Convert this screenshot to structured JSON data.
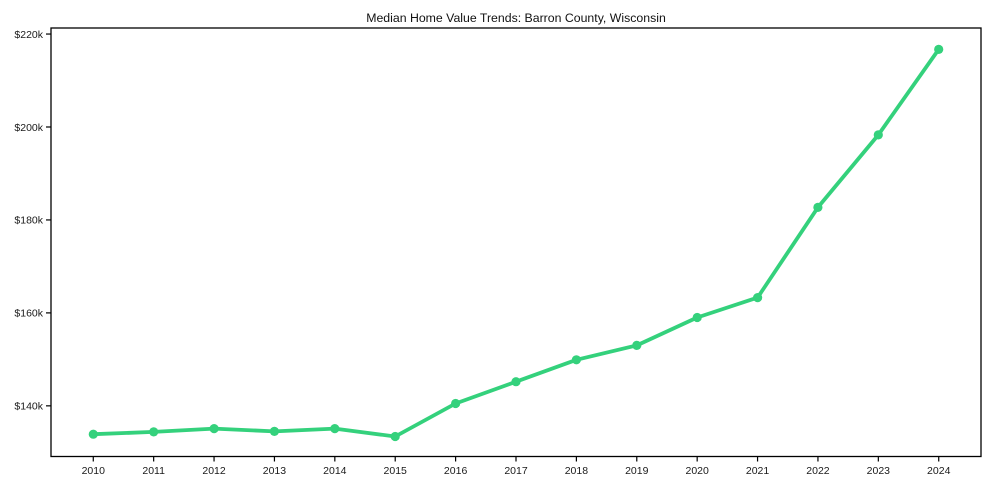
{
  "chart_data": {
    "type": "line",
    "title": "Median Home Value Trends: Barron County, Wisconsin",
    "xlabel": "",
    "ylabel": "",
    "x": [
      2010,
      2011,
      2012,
      2013,
      2014,
      2015,
      2016,
      2017,
      2018,
      2019,
      2020,
      2021,
      2022,
      2023,
      2024
    ],
    "x_labels": [
      "2010",
      "2011",
      "2012",
      "2013",
      "2014",
      "2015",
      "2016",
      "2017",
      "2018",
      "2019",
      "2020",
      "2021",
      "2022",
      "2023",
      "2024"
    ],
    "series": [
      {
        "name": "Median Home Value",
        "values": [
          133900,
          134400,
          135100,
          134500,
          135100,
          133400,
          140500,
          145200,
          149900,
          153000,
          159000,
          163300,
          182700,
          198300,
          216700
        ],
        "color": "#34d17c",
        "marker": "circle"
      }
    ],
    "y_ticks": [
      {
        "value": 140000,
        "label": "$140k"
      },
      {
        "value": 160000,
        "label": "$160k"
      },
      {
        "value": 180000,
        "label": "$180k"
      },
      {
        "value": 200000,
        "label": "$200k"
      },
      {
        "value": 220000,
        "label": "$220k"
      }
    ],
    "xlim": [
      2009.3,
      2024.7
    ],
    "ylim": [
      129100,
      221300
    ],
    "grid": false,
    "legend_position": "none",
    "axis_color": "#000000",
    "tick_label_color": "#1a1a1a",
    "background": "#ffffff"
  }
}
